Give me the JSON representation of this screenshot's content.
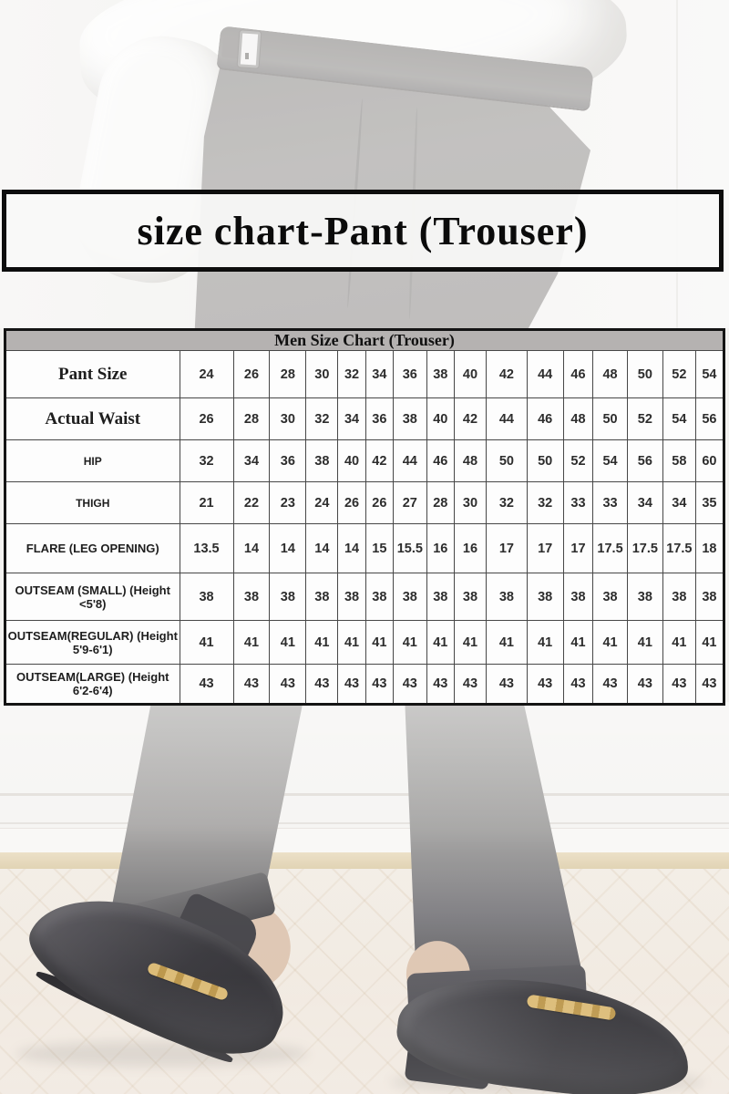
{
  "title_banner": {
    "text": "size chart-Pant (Trouser)"
  },
  "chart_data": {
    "type": "table",
    "title": "Men Size Chart (Trouser)",
    "rows": [
      {
        "label": "Pant Size",
        "values": [
          "24",
          "26",
          "28",
          "30",
          "32",
          "34",
          "36",
          "38",
          "40",
          "42",
          "44",
          "46",
          "48",
          "50",
          "52",
          "54"
        ]
      },
      {
        "label": "Actual Waist",
        "values": [
          "26",
          "28",
          "30",
          "32",
          "34",
          "36",
          "38",
          "40",
          "42",
          "44",
          "46",
          "48",
          "50",
          "52",
          "54",
          "56"
        ]
      },
      {
        "label": "HIP",
        "values": [
          "32",
          "34",
          "36",
          "38",
          "40",
          "42",
          "44",
          "46",
          "48",
          "50",
          "50",
          "52",
          "54",
          "56",
          "58",
          "60"
        ]
      },
      {
        "label": "THIGH",
        "values": [
          "21",
          "22",
          "23",
          "24",
          "26",
          "26",
          "27",
          "28",
          "30",
          "32",
          "32",
          "33",
          "33",
          "34",
          "34",
          "35"
        ]
      },
      {
        "label": "FLARE (LEG OPENING)",
        "values": [
          "13.5",
          "14",
          "14",
          "14",
          "14",
          "15",
          "15.5",
          "16",
          "16",
          "17",
          "17",
          "17",
          "17.5",
          "17.5",
          "17.5",
          "18"
        ]
      },
      {
        "label": "OUTSEAM (SMALL) (Height <5'8)",
        "values": [
          "38",
          "38",
          "38",
          "38",
          "38",
          "38",
          "38",
          "38",
          "38",
          "38",
          "38",
          "38",
          "38",
          "38",
          "38",
          "38"
        ]
      },
      {
        "label": "OUTSEAM(REGULAR) (Height 5'9-6'1)",
        "values": [
          "41",
          "41",
          "41",
          "41",
          "41",
          "41",
          "41",
          "41",
          "41",
          "41",
          "41",
          "41",
          "41",
          "41",
          "41",
          "41"
        ]
      },
      {
        "label": "OUTSEAM(LARGE) (Height 6'2-6'4)",
        "values": [
          "43",
          "43",
          "43",
          "43",
          "43",
          "43",
          "43",
          "43",
          "43",
          "43",
          "43",
          "43",
          "43",
          "43",
          "43",
          "43"
        ]
      }
    ]
  },
  "colors": {
    "table_header_gray": "#b5b2b1",
    "banner_border": "#0d0d0d",
    "wall": "#f3f2f0",
    "trousers_faded_gray": "#a7a5a3",
    "shoe_black": "#2b2a2f",
    "chain_gold": "#c9a35a",
    "floor_wood": "#f1eae2",
    "skirting_tan": "#e2d3b2",
    "skin": "#dcc3ae"
  }
}
